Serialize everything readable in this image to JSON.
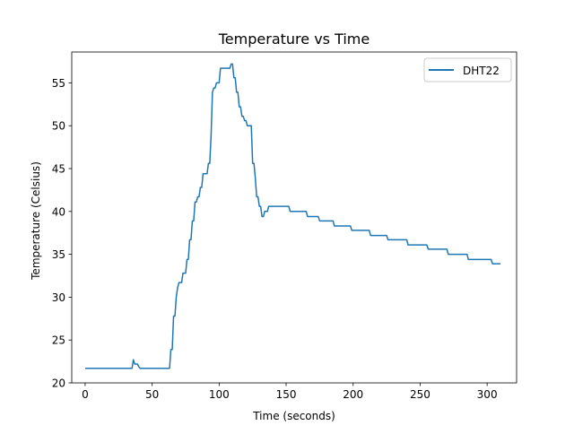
{
  "chart_data": {
    "type": "line",
    "title": "Temperature vs Time",
    "xlabel": "Time (seconds)",
    "ylabel": "Temperature (Celsius)",
    "xlim": [
      -10,
      322
    ],
    "ylim": [
      20,
      58.6
    ],
    "xticks": [
      0,
      50,
      100,
      150,
      200,
      250,
      300
    ],
    "yticks": [
      20,
      25,
      30,
      35,
      40,
      45,
      50,
      55
    ],
    "grid": false,
    "legend_position": "top-right",
    "series": [
      {
        "name": "DHT22",
        "color": "#1f77b4",
        "points": [
          [
            0,
            21.7
          ],
          [
            35,
            21.7
          ],
          [
            36,
            22.7
          ],
          [
            37,
            22.2
          ],
          [
            39,
            22.2
          ],
          [
            40,
            21.9
          ],
          [
            41,
            21.7
          ],
          [
            63,
            21.7
          ],
          [
            64,
            23.9
          ],
          [
            65,
            23.9
          ],
          [
            66,
            27.8
          ],
          [
            67,
            27.8
          ],
          [
            68,
            30.0
          ],
          [
            69,
            31.1
          ],
          [
            70,
            31.7
          ],
          [
            72,
            31.7
          ],
          [
            73,
            32.8
          ],
          [
            75,
            32.8
          ],
          [
            76,
            34.4
          ],
          [
            77,
            34.4
          ],
          [
            78,
            36.7
          ],
          [
            79,
            36.7
          ],
          [
            80,
            38.9
          ],
          [
            81,
            38.9
          ],
          [
            82,
            41.1
          ],
          [
            83,
            41.1
          ],
          [
            84,
            41.7
          ],
          [
            85,
            41.7
          ],
          [
            86,
            42.8
          ],
          [
            87,
            42.8
          ],
          [
            88,
            44.4
          ],
          [
            91,
            44.4
          ],
          [
            92,
            45.6
          ],
          [
            93,
            45.6
          ],
          [
            94,
            48.9
          ],
          [
            95,
            53.9
          ],
          [
            96,
            54.4
          ],
          [
            97,
            54.4
          ],
          [
            98,
            55.0
          ],
          [
            100,
            55.0
          ],
          [
            101,
            56.7
          ],
          [
            108,
            56.7
          ],
          [
            109,
            57.2
          ],
          [
            110,
            57.2
          ],
          [
            111,
            55.6
          ],
          [
            112,
            55.6
          ],
          [
            113,
            53.9
          ],
          [
            114,
            53.9
          ],
          [
            115,
            52.2
          ],
          [
            116,
            52.2
          ],
          [
            117,
            51.1
          ],
          [
            118,
            51.1
          ],
          [
            119,
            50.6
          ],
          [
            120,
            50.6
          ],
          [
            121,
            50.0
          ],
          [
            124,
            50.0
          ],
          [
            125,
            45.6
          ],
          [
            126,
            45.6
          ],
          [
            127,
            43.9
          ],
          [
            128,
            41.7
          ],
          [
            129,
            41.7
          ],
          [
            130,
            40.6
          ],
          [
            131,
            40.6
          ],
          [
            132,
            39.4
          ],
          [
            133,
            39.4
          ],
          [
            134,
            40.0
          ],
          [
            136,
            40.0
          ],
          [
            137,
            40.6
          ],
          [
            152,
            40.6
          ],
          [
            153,
            40.0
          ],
          [
            165,
            40.0
          ],
          [
            166,
            39.4
          ],
          [
            174,
            39.4
          ],
          [
            175,
            38.9
          ],
          [
            185,
            38.9
          ],
          [
            186,
            38.3
          ],
          [
            198,
            38.3
          ],
          [
            199,
            37.8
          ],
          [
            212,
            37.8
          ],
          [
            213,
            37.2
          ],
          [
            225,
            37.2
          ],
          [
            226,
            36.7
          ],
          [
            240,
            36.7
          ],
          [
            241,
            36.1
          ],
          [
            255,
            36.1
          ],
          [
            256,
            35.6
          ],
          [
            270,
            35.6
          ],
          [
            271,
            35.0
          ],
          [
            285,
            35.0
          ],
          [
            286,
            34.4
          ],
          [
            303,
            34.4
          ],
          [
            304,
            33.9
          ],
          [
            310,
            33.9
          ]
        ]
      }
    ]
  }
}
